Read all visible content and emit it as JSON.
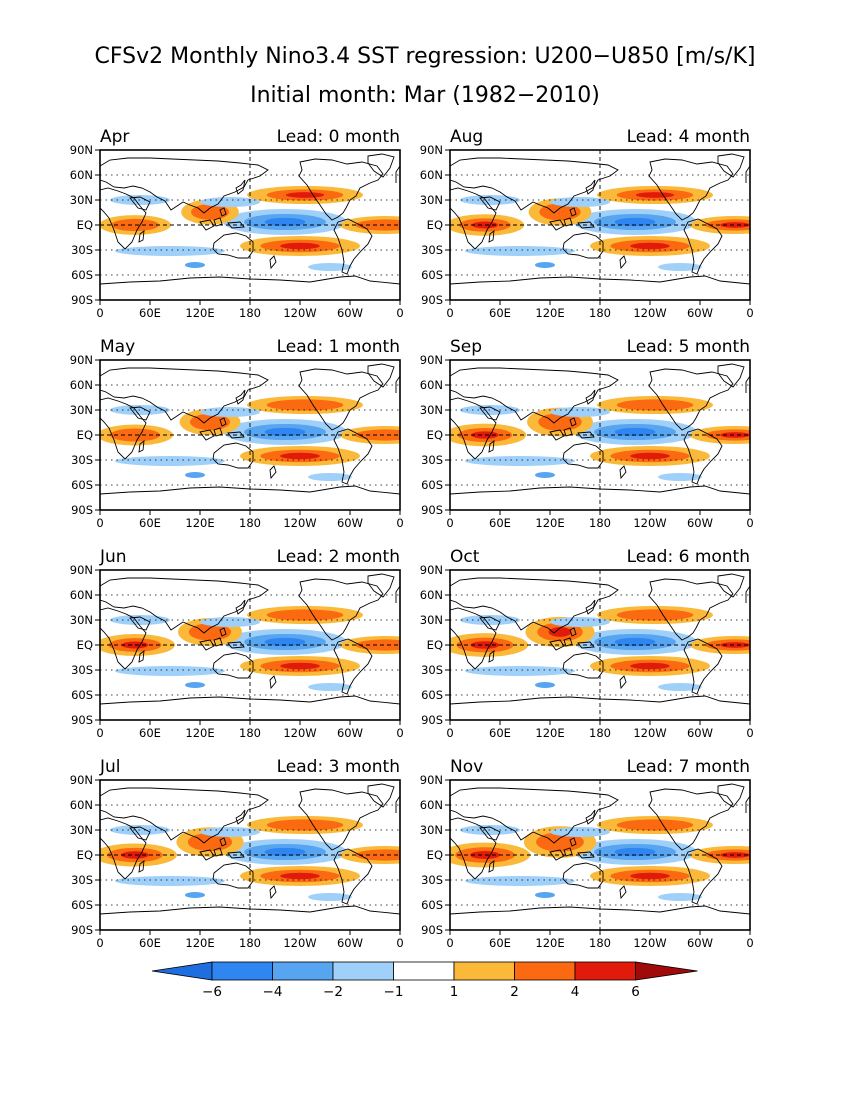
{
  "title": {
    "line1": "CFSv2 Monthly Nino3.4 SST regression: U200−U850 [m/s/K]",
    "line2": "Initial month: Mar (1982−2010)"
  },
  "lon_labels": [
    "0",
    "60E",
    "120E",
    "180",
    "120W",
    "60W",
    "0"
  ],
  "lat_labels": [
    "90N",
    "60N",
    "30N",
    "EQ",
    "30S",
    "60S",
    "90S"
  ],
  "lead_prefix": "Lead:",
  "panels": [
    {
      "month": "Apr",
      "lead": "0 month"
    },
    {
      "month": "Aug",
      "lead": "4 month"
    },
    {
      "month": "May",
      "lead": "1 month"
    },
    {
      "month": "Sep",
      "lead": "5 month"
    },
    {
      "month": "Jun",
      "lead": "2 month"
    },
    {
      "month": "Oct",
      "lead": "6 month"
    },
    {
      "month": "Jul",
      "lead": "3 month"
    },
    {
      "month": "Nov",
      "lead": "7 month"
    }
  ],
  "colorbar": {
    "levels": [
      "−6",
      "−4",
      "−2",
      "−1",
      "1",
      "2",
      "4",
      "6"
    ],
    "colors": [
      "#1e6ee0",
      "#2f86f0",
      "#57a4f0",
      "#9fd0fa",
      "#ffffff",
      "#fbb93a",
      "#fb6a10",
      "#e21a0c",
      "#a00a08"
    ]
  },
  "colors": {
    "pos1": "#fbb93a",
    "pos2": "#fb6a10",
    "pos3": "#e21a0c",
    "neg1": "#9fd0fa",
    "neg2": "#57a4f0",
    "neg3": "#2f86f0"
  }
}
